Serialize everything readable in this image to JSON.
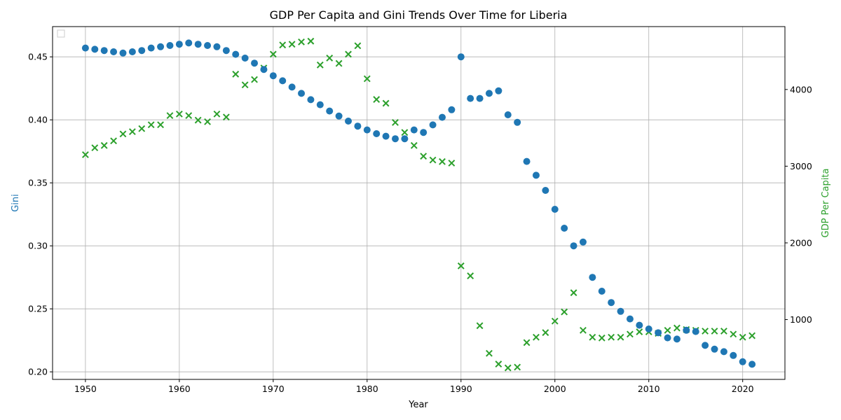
{
  "chart_data": {
    "type": "scatter",
    "title": "GDP Per Capita and Gini Trends Over Time for Liberia",
    "xlabel": "Year",
    "ylabel_left": "Gini",
    "ylabel_right": "GDP Per Capita",
    "xlim": [
      1946.5,
      2024.5
    ],
    "ylim_left": [
      0.194,
      0.474
    ],
    "ylim_right": [
      220,
      4820
    ],
    "x_ticks": [
      1950,
      1960,
      1970,
      1980,
      1990,
      2000,
      2010,
      2020
    ],
    "y_left_ticks": [
      0.2,
      0.25,
      0.3,
      0.35,
      0.4,
      0.45
    ],
    "y_left_tick_labels": [
      "0.20",
      "0.25",
      "0.30",
      "0.35",
      "0.40",
      "0.45"
    ],
    "y_right_ticks": [
      1000,
      2000,
      3000,
      4000
    ],
    "y_right_tick_labels": [
      "1000",
      "2000",
      "3000",
      "4000"
    ],
    "grid": true,
    "legend": "top-left (empty)",
    "colors": {
      "gini": "#1f77b4",
      "gdp": "#2ca02c"
    },
    "series": [
      {
        "axis": "left",
        "marker": "circle",
        "x": [
          1950,
          1951,
          1952,
          1953,
          1954,
          1955,
          1956,
          1957,
          1958,
          1959,
          1960,
          1961,
          1962,
          1963,
          1964,
          1965,
          1966,
          1967,
          1968,
          1969,
          1970,
          1971,
          1972,
          1973,
          1974,
          1975,
          1976,
          1977,
          1978,
          1979,
          1980,
          1981,
          1982,
          1983,
          1984,
          1985,
          1986,
          1987,
          1988,
          1989,
          1990,
          1991,
          1992,
          1993,
          1994,
          1995,
          1996,
          1997,
          1998,
          1999,
          2000,
          2001,
          2002,
          2003,
          2004,
          2005,
          2006,
          2007,
          2008,
          2009,
          2010,
          2011,
          2012,
          2013,
          2014,
          2015,
          2016,
          2017,
          2018,
          2019,
          2020,
          2021
        ],
        "values": [
          0.457,
          0.456,
          0.455,
          0.454,
          0.453,
          0.454,
          0.455,
          0.457,
          0.458,
          0.459,
          0.46,
          0.461,
          0.46,
          0.459,
          0.458,
          0.455,
          0.452,
          0.449,
          0.445,
          0.44,
          0.435,
          0.431,
          0.426,
          0.421,
          0.416,
          0.412,
          0.407,
          0.403,
          0.399,
          0.395,
          0.392,
          0.389,
          0.387,
          0.385,
          0.385,
          0.392,
          0.39,
          0.396,
          0.402,
          0.408,
          0.45,
          0.417,
          0.417,
          0.421,
          0.423,
          0.404,
          0.398,
          0.367,
          0.356,
          0.344,
          0.329,
          0.314,
          0.3,
          0.303,
          0.275,
          0.264,
          0.255,
          0.248,
          0.242,
          0.237,
          0.234,
          0.231,
          0.227,
          0.226,
          0.233,
          0.232,
          0.221,
          0.218,
          0.216,
          0.213,
          0.208,
          0.206
        ]
      },
      {
        "axis": "right",
        "marker": "x",
        "x": [
          1950,
          1951,
          1952,
          1953,
          1954,
          1955,
          1956,
          1957,
          1958,
          1959,
          1960,
          1961,
          1962,
          1963,
          1964,
          1965,
          1966,
          1967,
          1968,
          1969,
          1970,
          1971,
          1972,
          1973,
          1974,
          1975,
          1976,
          1977,
          1978,
          1979,
          1980,
          1981,
          1982,
          1983,
          1984,
          1985,
          1986,
          1987,
          1988,
          1989,
          1990,
          1991,
          1992,
          1993,
          1994,
          1995,
          1996,
          1997,
          1998,
          1999,
          2000,
          2001,
          2002,
          2003,
          2004,
          2005,
          2006,
          2007,
          2008,
          2009,
          2010,
          2011,
          2012,
          2013,
          2014,
          2015,
          2016,
          2017,
          2018,
          2019,
          2020,
          2021
        ],
        "values": [
          3150,
          3240,
          3270,
          3330,
          3420,
          3450,
          3490,
          3540,
          3540,
          3660,
          3680,
          3660,
          3600,
          3580,
          3680,
          3640,
          4200,
          4060,
          4130,
          4280,
          4460,
          4580,
          4590,
          4620,
          4630,
          4320,
          4410,
          4340,
          4460,
          4570,
          4140,
          3870,
          3820,
          3570,
          3440,
          3270,
          3130,
          3080,
          3060,
          3040,
          1700,
          1570,
          920,
          560,
          420,
          370,
          380,
          700,
          770,
          830,
          980,
          1100,
          1350,
          860,
          770,
          760,
          770,
          770,
          810,
          840,
          840,
          820,
          860,
          890,
          870,
          860,
          850,
          850,
          850,
          810,
          770,
          790
        ]
      }
    ]
  }
}
